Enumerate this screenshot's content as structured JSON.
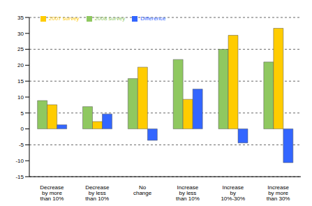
{
  "chart_data": {
    "type": "bar",
    "categories": [
      "Decrease by more than 10%",
      "Decrease by less than 10%",
      "No change",
      "Increase by less than 10%",
      "Increase by 10%-30%",
      "Increase by more than 30%"
    ],
    "series": [
      {
        "name": "2008 survey",
        "color": "#8fc860",
        "values": [
          8.9,
          7.0,
          15.8,
          21.8,
          25.0,
          21.0
        ]
      },
      {
        "name": "2007 survey",
        "color": "#ffcc00",
        "values": [
          7.6,
          2.3,
          19.4,
          9.3,
          29.4,
          31.6
        ]
      },
      {
        "name": "Difference",
        "color": "#3366ff",
        "values": [
          1.3,
          4.7,
          -3.6,
          12.5,
          -4.4,
          -10.6
        ]
      }
    ],
    "ylim": [
      -15,
      35
    ],
    "yticks": [
      -15,
      -10,
      -5,
      0,
      5,
      10,
      15,
      20,
      25,
      30,
      35
    ],
    "grid": true,
    "legend": "upper left"
  }
}
